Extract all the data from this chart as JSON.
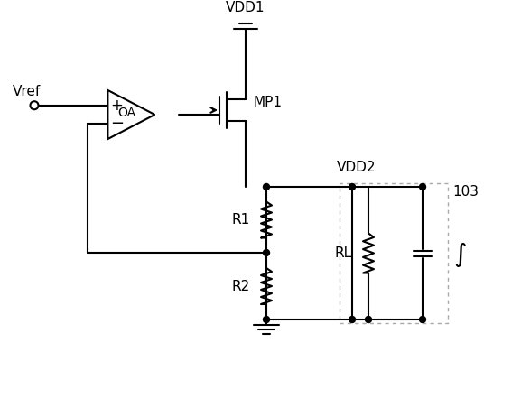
{
  "background_color": "#ffffff",
  "line_color": "#000000",
  "dot_color": "#000000",
  "labels": {
    "vref": "Vref",
    "vdd1": "VDD1",
    "vdd2": "VDD2",
    "mp1": "MP1",
    "oa": "OA",
    "r1": "R1",
    "r2": "R2",
    "rl": "RL",
    "num103": "103"
  },
  "figsize": [
    5.67,
    4.62
  ],
  "dpi": 100,
  "xlim": [
    0,
    567
  ],
  "ylim": [
    0,
    462
  ]
}
